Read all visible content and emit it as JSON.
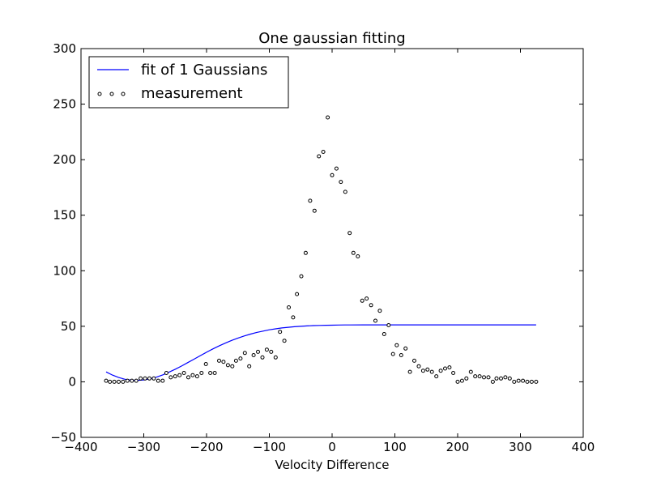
{
  "chart_data": {
    "type": "scatter",
    "title": "One gaussian fitting",
    "xlabel": "Velocity Difference",
    "ylabel": "",
    "xlim": [
      -400,
      400
    ],
    "ylim": [
      -50,
      300
    ],
    "xticks": [
      -400,
      -300,
      -200,
      -100,
      0,
      100,
      200,
      300,
      400
    ],
    "yticks": [
      -50,
      0,
      50,
      100,
      150,
      200,
      250,
      300
    ],
    "xtick_labels": [
      "−400",
      "−300",
      "−200",
      "−100",
      "0",
      "100",
      "200",
      "300",
      "400"
    ],
    "ytick_labels": [
      "−50",
      "0",
      "50",
      "100",
      "150",
      "200",
      "250",
      "300"
    ],
    "grid": false,
    "legend_position": "top-left",
    "colors": {
      "fit": "#0000ff",
      "measurement_edge": "#000000",
      "measurement_fill": "#ffffff",
      "axes": "#000000",
      "background": "#ffffff"
    },
    "series": [
      {
        "name": "fit of 1 Gaussians",
        "kind": "line",
        "x": [
          -360,
          -350,
          -340,
          -330,
          -320,
          -310,
          -300,
          -290,
          -280,
          -270,
          -260,
          -250,
          -240,
          -230,
          -220,
          -210,
          -200,
          -190,
          -180,
          -170,
          -160,
          -150,
          -140,
          -130,
          -120,
          -110,
          -100,
          -90,
          -80,
          -70,
          -60,
          -50,
          -40,
          -30,
          -20,
          -10,
          0,
          10,
          20,
          30,
          50,
          100,
          150,
          200,
          250,
          300,
          325
        ],
        "y": [
          8.9,
          6.1,
          3.9,
          2.3,
          1.5,
          1.3,
          1.7,
          2.7,
          4.2,
          6.2,
          8.6,
          11.3,
          14.2,
          17.3,
          20.4,
          23.6,
          26.6,
          29.6,
          32.3,
          34.9,
          37.3,
          39.4,
          41.3,
          43.0,
          44.5,
          45.7,
          46.8,
          47.7,
          48.5,
          49.1,
          49.6,
          50.0,
          50.3,
          50.6,
          50.8,
          50.9,
          51.0,
          51.1,
          51.2,
          51.2,
          51.3,
          51.3,
          51.3,
          51.3,
          51.3,
          51.3,
          51.3
        ]
      },
      {
        "name": "measurement",
        "kind": "scatter",
        "x": [
          -360,
          -354,
          -347,
          -340,
          -333,
          -326,
          -319,
          -312,
          -305,
          -298,
          -291,
          -284,
          -277,
          -270,
          -264,
          -257,
          -250,
          -243,
          -236,
          -229,
          -222,
          -215,
          -208,
          -201,
          -194,
          -187,
          -180,
          -173,
          -166,
          -159,
          -153,
          -146,
          -139,
          -132,
          -125,
          -118,
          -111,
          -104,
          -97,
          -90,
          -83,
          -76,
          -69,
          -62,
          -56,
          -49,
          -42,
          -35,
          -28,
          -21,
          -14,
          -7,
          0,
          7,
          14,
          21,
          28,
          34,
          41,
          48,
          55,
          62,
          69,
          76,
          83,
          90,
          97,
          103,
          110,
          117,
          124,
          131,
          138,
          145,
          152,
          159,
          166,
          173,
          180,
          187,
          193,
          200,
          207,
          214,
          221,
          228,
          235,
          242,
          249,
          256,
          262,
          269,
          276,
          283,
          290,
          297,
          304,
          311,
          318,
          325
        ],
        "y": [
          1,
          0,
          0,
          0,
          0,
          1,
          1,
          1,
          3,
          3,
          3,
          3,
          1,
          1,
          8,
          4,
          5,
          6,
          8,
          4,
          6,
          5,
          8,
          16,
          8,
          8,
          19,
          18,
          15,
          14,
          19,
          21,
          26,
          14,
          24,
          27,
          22,
          29,
          27,
          22,
          45,
          37,
          67,
          58,
          79,
          95,
          116,
          163,
          154,
          203,
          207,
          238,
          186,
          192,
          180,
          171,
          134,
          116,
          113,
          73,
          75,
          69,
          55,
          64,
          43,
          51,
          25,
          33,
          24,
          30,
          9,
          19,
          14,
          10,
          11,
          9,
          5,
          10,
          12,
          13,
          8,
          0,
          1,
          3,
          9,
          5,
          5,
          4,
          4,
          0,
          3,
          3,
          4,
          3,
          0,
          1,
          1,
          0,
          0,
          0
        ]
      }
    ]
  }
}
